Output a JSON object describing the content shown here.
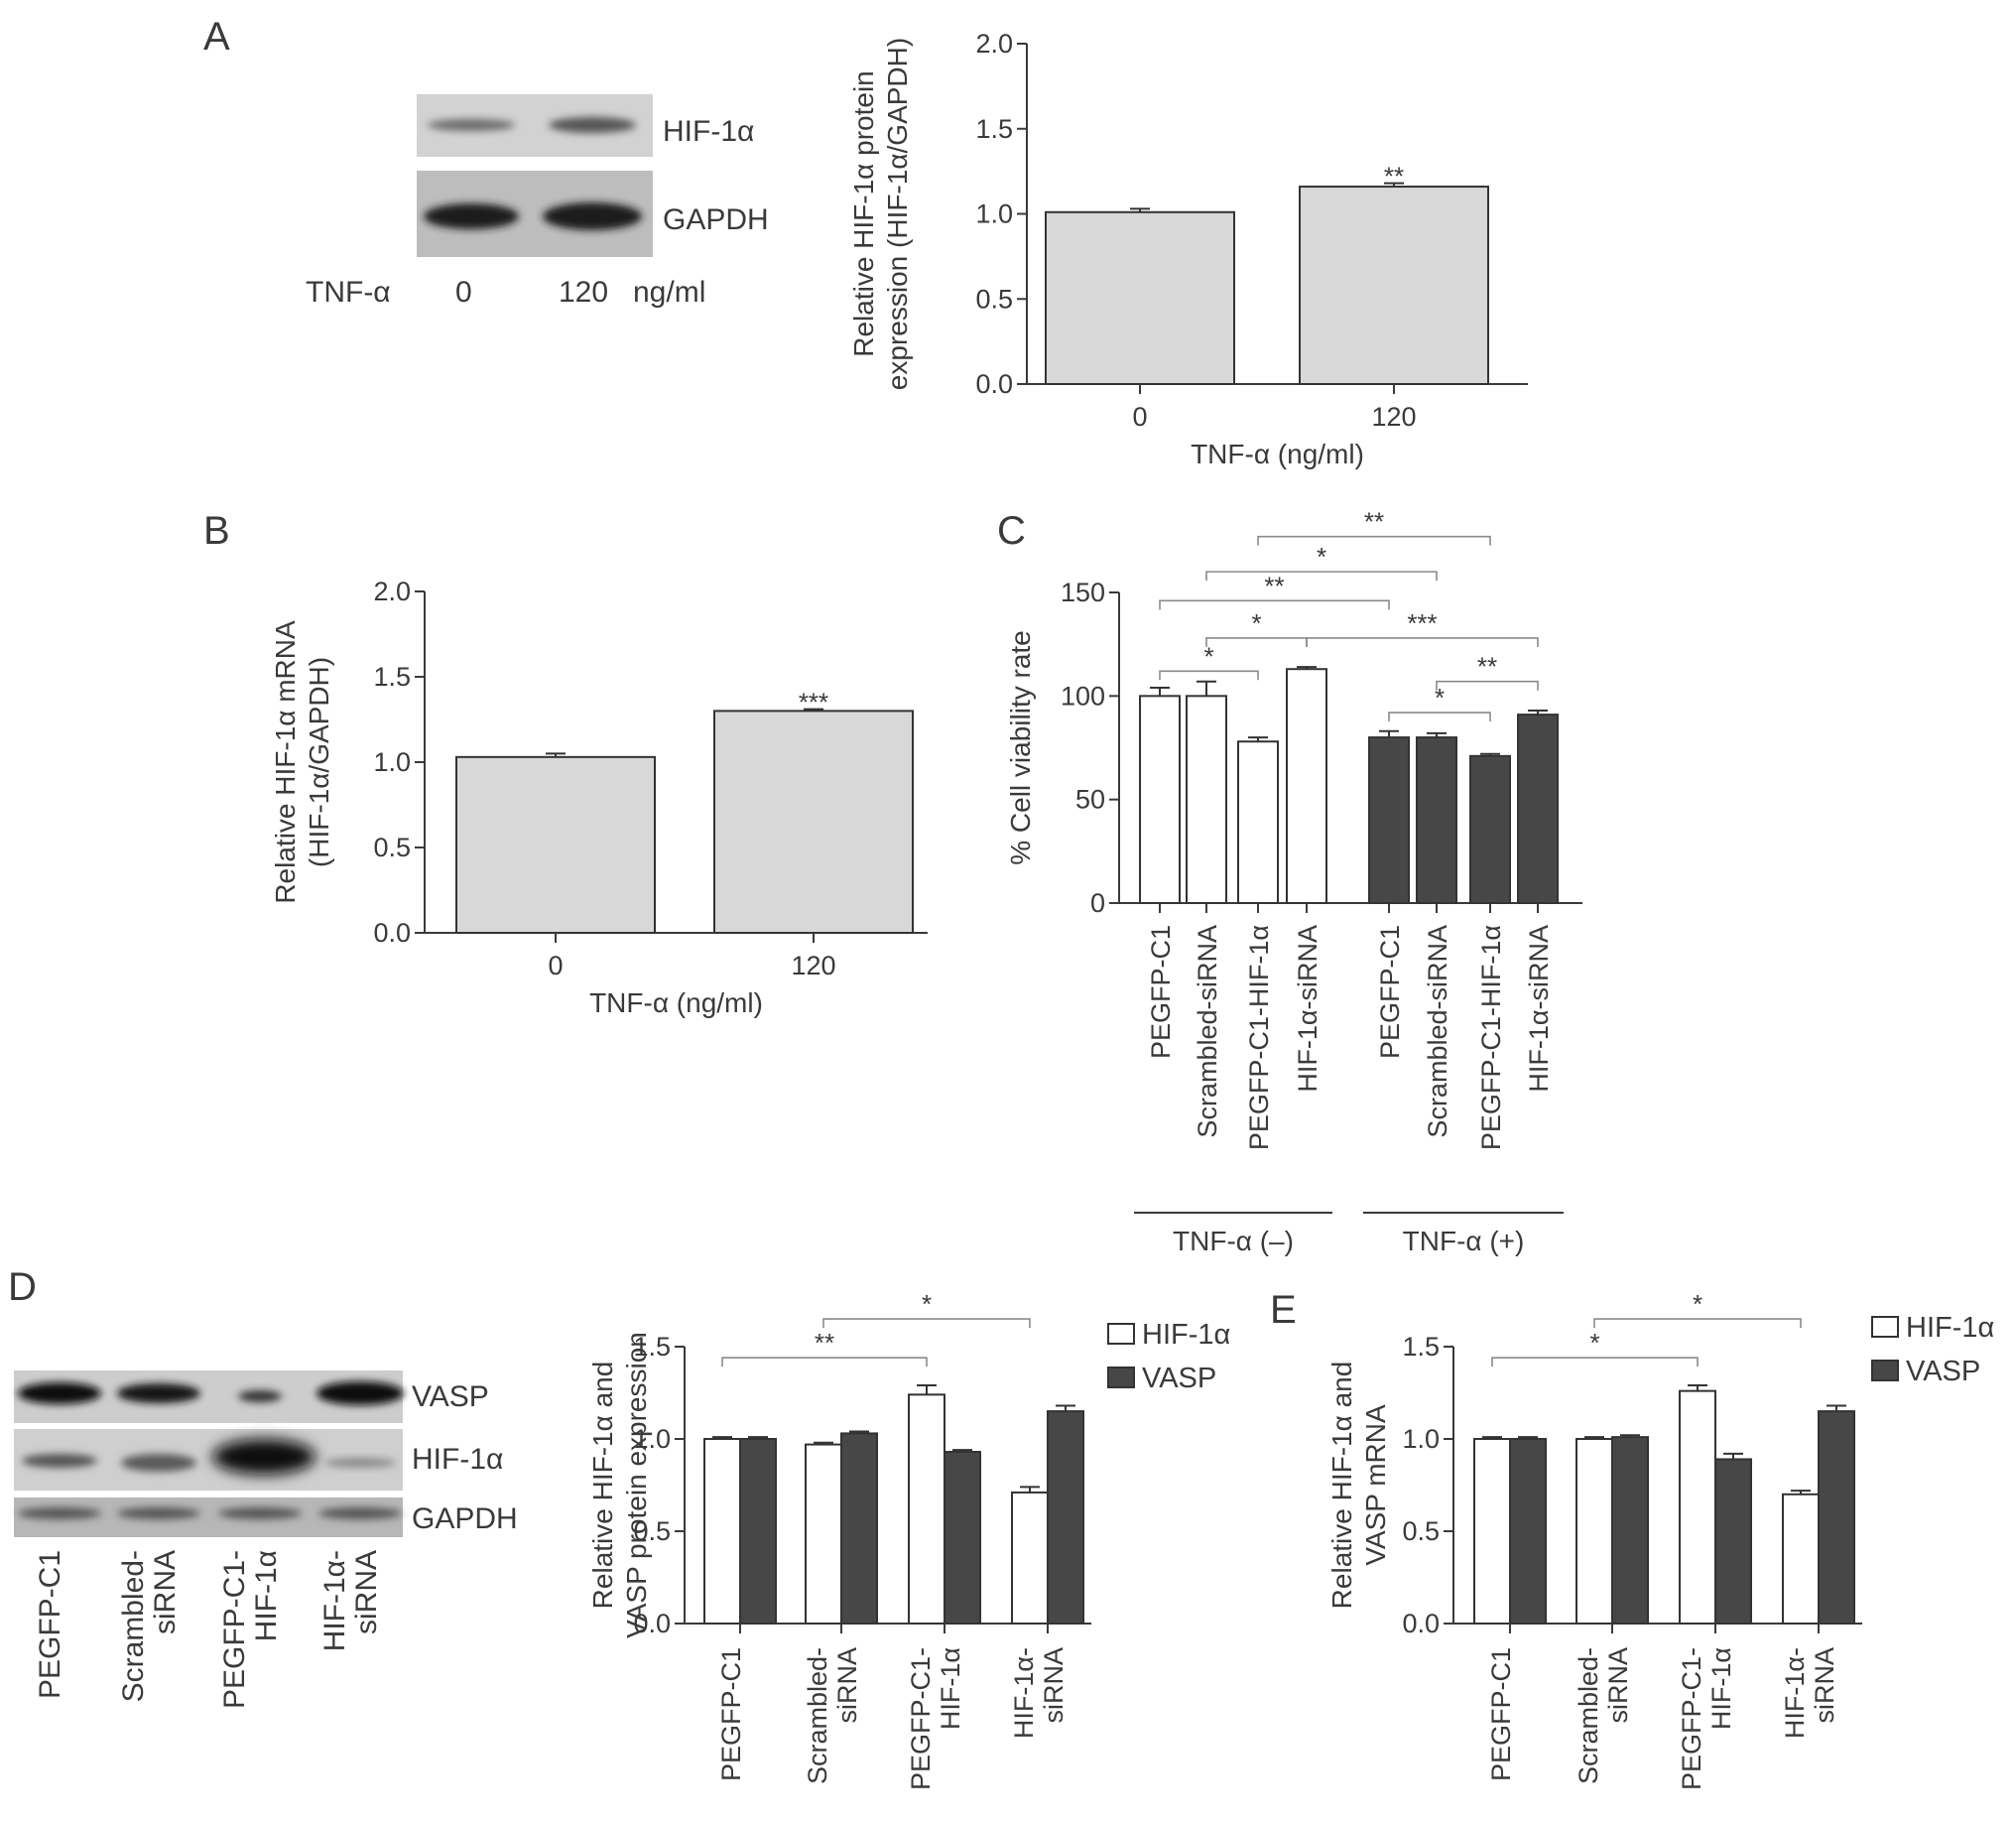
{
  "colors": {
    "bar_gray": "#d8d8d8",
    "bar_white": "#ffffff",
    "bar_dark": "#474747",
    "axis": "#3a3a3a",
    "bracket": "#8a8a8a"
  },
  "panels": {
    "A": {
      "letter": "A",
      "blot": {
        "bands": [
          "HIF-1α",
          "GAPDH"
        ],
        "treatment_label": "TNF-α",
        "doses": [
          "0",
          "120"
        ],
        "unit": "ng/ml"
      }
    },
    "B": {
      "letter": "B"
    },
    "C": {
      "letter": "C"
    },
    "D": {
      "letter": "D",
      "blot": {
        "bands": [
          "VASP",
          "HIF-1α",
          "GAPDH"
        ],
        "lanes": [
          "PEGFP-C1",
          "Scrambled-\nsiRNA",
          "PEGFP-C1-\nHIF-1α",
          "HIF-1α-\nsiRNA"
        ]
      }
    },
    "E": {
      "letter": "E"
    }
  },
  "chart_data": [
    {
      "id": "A",
      "type": "bar",
      "categories": [
        "0",
        "120"
      ],
      "values": [
        1.01,
        1.16
      ],
      "errors": [
        0.02,
        0.02
      ],
      "significance": [
        "",
        "**"
      ],
      "xlabel": "TNF-α (ng/ml)",
      "ylabel": [
        "Relative HIF-1α protein",
        "expression (HIF-1α/GAPDH)"
      ],
      "ylim": [
        0,
        2.0
      ],
      "yticks": [
        "0.0",
        "0.5",
        "1.0",
        "1.5",
        "2.0"
      ]
    },
    {
      "id": "B",
      "type": "bar",
      "categories": [
        "0",
        "120"
      ],
      "values": [
        1.03,
        1.3
      ],
      "errors": [
        0.02,
        0.01
      ],
      "significance": [
        "",
        "***"
      ],
      "xlabel": "TNF-α (ng/ml)",
      "ylabel": [
        "Relative HIF-1α mRNA",
        "(HIF-1α/GAPDH)"
      ],
      "ylim": [
        0,
        2.0
      ],
      "yticks": [
        "0.0",
        "0.5",
        "1.0",
        "1.5",
        "2.0"
      ]
    },
    {
      "id": "C",
      "type": "bar",
      "categories": [
        "PEGFP-C1",
        "Scrambled-siRNA",
        "PEGFP-C1-HIF-1α",
        "HIF-1α-siRNA",
        "PEGFP-C1",
        "Scrambled-siRNA",
        "PEGFP-C1-HIF-1α",
        "HIF-1α-siRNA"
      ],
      "values": [
        100,
        100,
        78,
        113,
        80,
        80,
        71,
        91
      ],
      "errors": [
        4,
        7,
        2,
        1,
        3,
        2,
        1,
        2
      ],
      "fills": [
        "white",
        "white",
        "white",
        "white",
        "dark",
        "dark",
        "dark",
        "dark"
      ],
      "groups": [
        {
          "label": "TNF-α (–)",
          "from": 0,
          "to": 3
        },
        {
          "label": "TNF-α (+)",
          "from": 4,
          "to": 7
        }
      ],
      "ylabel": "% Cell viability rate",
      "ylim": [
        0,
        150
      ],
      "yticks": [
        "0",
        "50",
        "100",
        "150"
      ],
      "comparisons": [
        {
          "from": 0,
          "to": 2,
          "label": "*",
          "value": 112
        },
        {
          "from": 1,
          "to": 3,
          "label": "*",
          "value": 128
        },
        {
          "from": 3,
          "to": 7,
          "label": "***",
          "value": 128
        },
        {
          "from": 5,
          "to": 7,
          "label": "**",
          "value": 107
        },
        {
          "from": 4,
          "to": 6,
          "label": "*",
          "value": 92
        },
        {
          "from": 0,
          "to": 4,
          "label": "**",
          "value": 146
        },
        {
          "from": 1,
          "to": 5,
          "label": "*",
          "value": 160
        },
        {
          "from": 2,
          "to": 6,
          "label": "**",
          "value": 177
        }
      ]
    },
    {
      "id": "D",
      "type": "bar",
      "categories": [
        "PEGFP-C1",
        "Scrambled-\nsiRNA",
        "PEGFP-C1-\nHIF-1α",
        "HIF-1α-\nsiRNA"
      ],
      "series": [
        {
          "name": "HIF-1α",
          "fill": "white",
          "values": [
            1.0,
            0.97,
            1.24,
            0.71
          ],
          "errors": [
            0.01,
            0.01,
            0.05,
            0.03
          ]
        },
        {
          "name": "VASP",
          "fill": "dark",
          "values": [
            1.0,
            1.03,
            0.93,
            1.15
          ],
          "errors": [
            0.01,
            0.01,
            0.01,
            0.03
          ]
        }
      ],
      "ylabel": [
        "Relative HIF-1α and",
        "VASP protein expression"
      ],
      "ylim": [
        0,
        1.5
      ],
      "yticks": [
        "0.0",
        "0.5",
        "1.0",
        "1.5"
      ],
      "legend_position": "top-right",
      "comparisons": [
        {
          "from": 0,
          "to": 2,
          "label": "**",
          "value": 1.44
        },
        {
          "from": 1,
          "to": 3,
          "label": "*",
          "value": 1.65
        }
      ]
    },
    {
      "id": "E",
      "type": "bar",
      "categories": [
        "PEGFP-C1",
        "Scrambled-\nsiRNA",
        "PEGFP-C1-\nHIF-1α",
        "HIF-1α-\nsiRNA"
      ],
      "series": [
        {
          "name": "HIF-1α",
          "fill": "white",
          "values": [
            1.0,
            1.0,
            1.26,
            0.7
          ],
          "errors": [
            0.01,
            0.01,
            0.03,
            0.02
          ]
        },
        {
          "name": "VASP",
          "fill": "dark",
          "values": [
            1.0,
            1.01,
            0.89,
            1.15
          ],
          "errors": [
            0.01,
            0.01,
            0.03,
            0.03
          ]
        }
      ],
      "ylabel": [
        "Relative HIF-1α and",
        "VASP mRNA"
      ],
      "ylim": [
        0,
        1.5
      ],
      "yticks": [
        "0.0",
        "0.5",
        "1.0",
        "1.5"
      ],
      "legend_position": "top-right",
      "comparisons": [
        {
          "from": 0,
          "to": 2,
          "label": "*",
          "value": 1.44
        },
        {
          "from": 1,
          "to": 3,
          "label": "*",
          "value": 1.65
        }
      ]
    }
  ]
}
